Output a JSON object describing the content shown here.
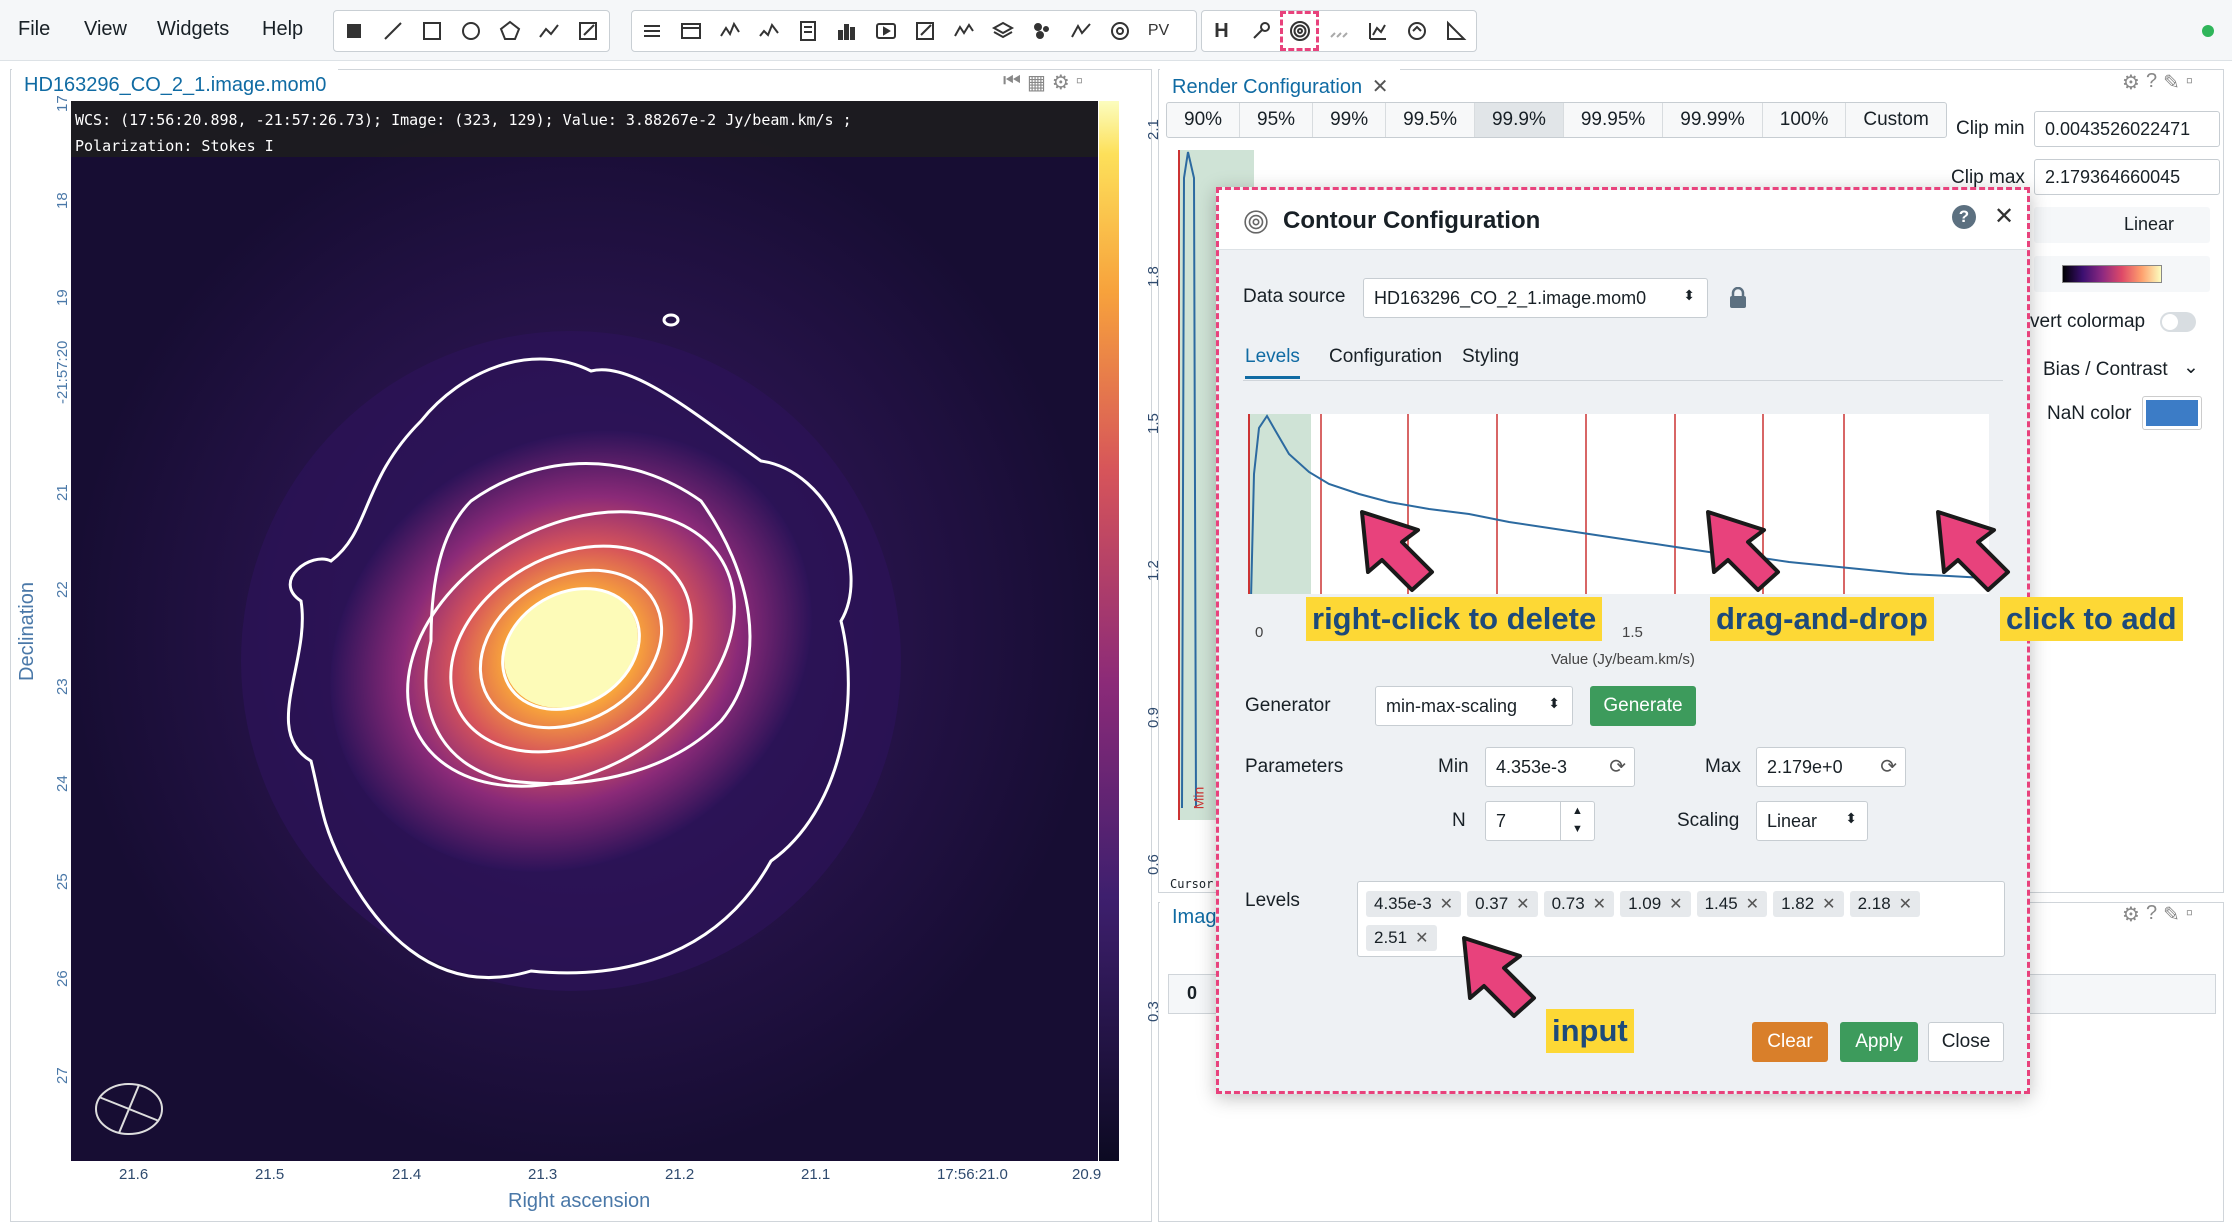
{
  "menu": {
    "file": "File",
    "view": "View",
    "widgets": "Widgets",
    "help": "Help"
  },
  "toolbar": {
    "pv_label": "PV",
    "h_label": "H"
  },
  "image_view": {
    "tab_title": "HD163296_CO_2_1.image.mom0",
    "info_line1": "WCS: (17:56:20.898, -21:57:26.73); Image: (323, 129); Value:  3.88267e-2 Jy/beam.km/s ;",
    "info_line2": "Polarization: Stokes I",
    "dec_ticks": [
      "17",
      "18",
      "19",
      "-21:57:20",
      "21",
      "22",
      "23",
      "24",
      "25",
      "26",
      "27"
    ],
    "ra_ticks": [
      "21.6",
      "21.5",
      "21.4",
      "21.3",
      "21.2",
      "21.1",
      "17:56:21.0",
      "20.9"
    ],
    "xlabel": "Right ascension",
    "ylabel": "Declination",
    "colorbar_ticks": [
      "2.1",
      "1.8",
      "1.5",
      "1.2",
      "0.9",
      "0.6",
      "0.3"
    ]
  },
  "render_config": {
    "tab_title": "Render Configuration",
    "percentiles": [
      "90%",
      "95%",
      "99%",
      "99.5%",
      "99.9%",
      "99.95%",
      "99.99%",
      "100%",
      "Custom"
    ],
    "selected": "99.9%",
    "clip_min_label": "Clip min",
    "clip_min": "0.0043526022471",
    "clip_max_label": "Clip max",
    "clip_max": "2.179364660045",
    "scaling": "Linear",
    "invert_label": "vert colormap",
    "bias_label": "Bias / Contrast",
    "nan_label": "NaN color",
    "min_marker": "Min",
    "cursor_label": "Cursor"
  },
  "lower_panel": {
    "tab_title": "Imag",
    "cell": "0"
  },
  "contour_dialog": {
    "title": "Contour Configuration",
    "data_source_label": "Data source",
    "data_source": "HD163296_CO_2_1.image.mom0",
    "tabs": [
      "Levels",
      "Configuration",
      "Styling"
    ],
    "hist_x0": "0",
    "hist_x15": "1.5",
    "hist_xlabel": "Value (Jy/beam.km/s)",
    "generator_label": "Generator",
    "generator": "min-max-scaling",
    "generate_btn": "Generate",
    "parameters_label": "Parameters",
    "min_label": "Min",
    "min_value": "4.353e-3",
    "max_label": "Max",
    "max_value": "2.179e+0",
    "n_label": "N",
    "n_value": "7",
    "scaling_label": "Scaling",
    "scaling_value": "Linear",
    "levels_label": "Levels",
    "levels": [
      "4.35e-3",
      "0.37",
      "0.73",
      "1.09",
      "1.45",
      "1.82",
      "2.18",
      "2.51"
    ],
    "clear_btn": "Clear",
    "apply_btn": "Apply",
    "close_btn": "Close"
  },
  "annotations": {
    "right_click": "right-click to delete",
    "drag": "drag-and-drop",
    "click_add": "click to add",
    "input": "input"
  },
  "colors": {
    "accent": "#106ba3",
    "highlight": "#e8427c",
    "callout": "#fdd835",
    "generate": "#3d9b5c",
    "clear": "#d97f2a",
    "nan": "#3c7cc6"
  }
}
